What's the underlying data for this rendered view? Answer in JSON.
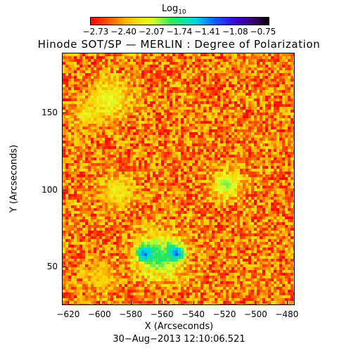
{
  "colorbar": {
    "title_base": "Log",
    "title_sub": "10",
    "tick_labels": [
      "−2.73",
      "−2.40",
      "−2.07",
      "−1.74",
      "−1.41",
      "−1.08",
      "−0.75"
    ],
    "range": [
      -2.73,
      -0.75
    ]
  },
  "title": "Hinode SOT/SP — MERLIN : Degree of Polarization",
  "timestamp": "30−Aug−2013 12:10:06.521",
  "chart_data": {
    "type": "heatmap",
    "title": "Hinode SOT/SP — MERLIN : Degree of Polarization",
    "xlabel": "X (Arcseconds)",
    "ylabel": "Y (Arcseconds)",
    "x_ticks": [
      "−620",
      "−600",
      "−580",
      "−560",
      "−540",
      "−520",
      "−500",
      "−480"
    ],
    "x_tick_values": [
      -620,
      -600,
      -580,
      -560,
      -540,
      -520,
      -500,
      -480
    ],
    "y_ticks": [
      "50",
      "100",
      "150"
    ],
    "y_tick_values": [
      50,
      100,
      150
    ],
    "xlim": [
      -624,
      -475
    ],
    "ylim": [
      25,
      189
    ],
    "color_scale": "log10, rainbow (red low to violet high)",
    "value_range": [
      -2.73,
      -0.75
    ],
    "features": [
      {
        "x": -572,
        "y": 60,
        "radius": 6,
        "level": -0.8
      },
      {
        "x": -553,
        "y": 60,
        "radius": 6,
        "level": -0.8
      },
      {
        "x": -563,
        "y": 58,
        "radius": 16,
        "level": -1.7
      },
      {
        "x": -590,
        "y": 100,
        "radius": 12,
        "level": -2.1
      },
      {
        "x": -520,
        "y": 105,
        "radius": 10,
        "level": -1.9
      },
      {
        "x": -595,
        "y": 160,
        "radius": 14,
        "level": -2.0
      },
      {
        "x": -610,
        "y": 150,
        "radius": 8,
        "level": -2.1
      },
      {
        "x": -600,
        "y": 45,
        "radius": 10,
        "level": -2.2
      }
    ]
  }
}
